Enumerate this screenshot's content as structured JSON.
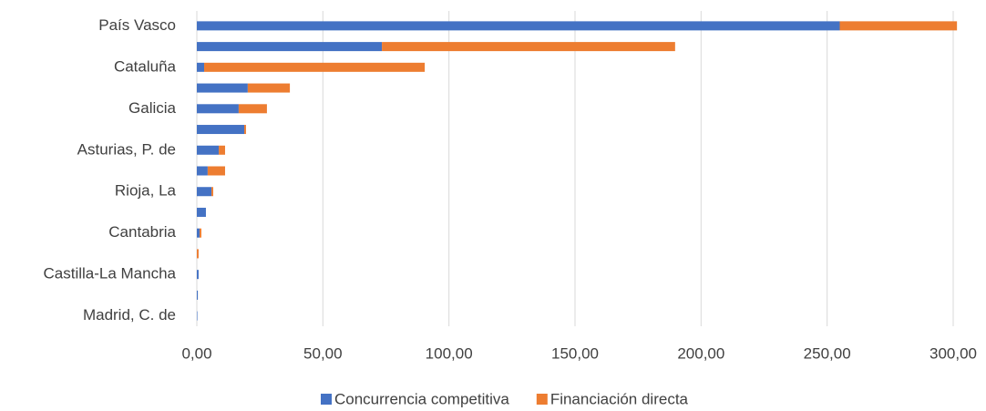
{
  "chart_data": {
    "type": "bar",
    "orientation": "horizontal",
    "stacked": true,
    "categories": [
      "País Vasco",
      null,
      "Cataluña",
      null,
      "Galicia",
      null,
      "Asturias, P. de",
      null,
      "Rioja, La",
      null,
      "Cantabria",
      null,
      "Castilla-La Mancha",
      null,
      "Madrid, C. de"
    ],
    "series": [
      {
        "name": "Concurrencia competitiva",
        "color": "#4472c4",
        "values": [
          255,
          73.4,
          2.9,
          20.2,
          16.6,
          18.8,
          8.7,
          4.3,
          5.8,
          3.6,
          1.1,
          0,
          0.7,
          0.4,
          0.2
        ]
      },
      {
        "name": "Financiación directa",
        "color": "#ed7d31",
        "values": [
          46.5,
          116.3,
          87.5,
          16.7,
          11.2,
          0.7,
          2.5,
          6.9,
          0.7,
          0,
          0.7,
          0.7,
          0,
          0,
          0
        ]
      }
    ],
    "xlim": [
      0,
      300
    ],
    "xticks": [
      {
        "value": 0,
        "label": "0,00"
      },
      {
        "value": 50,
        "label": "50,00"
      },
      {
        "value": 100,
        "label": "100,00"
      },
      {
        "value": 150,
        "label": "150,00"
      },
      {
        "value": 200,
        "label": "200,00"
      },
      {
        "value": 250,
        "label": "250,00"
      },
      {
        "value": 300,
        "label": "300,00"
      }
    ],
    "grid": true,
    "legend": "bottom"
  }
}
